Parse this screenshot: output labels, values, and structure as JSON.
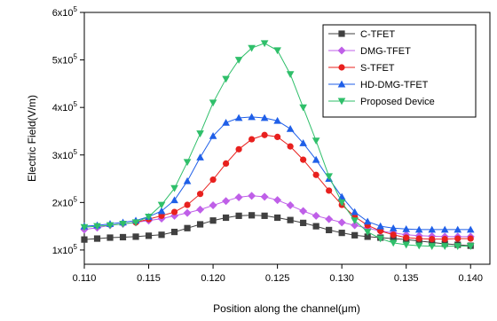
{
  "chart_data": {
    "type": "line",
    "xlabel": "Position along the channel(",
    "xlabel_unit": "μm",
    "xlabel_close": ")",
    "ylabel": "Electric Field(V/m)",
    "xlim": [
      0.11,
      0.1415
    ],
    "ylim": [
      70000,
      600000
    ],
    "x_ticks": [
      0.11,
      0.115,
      0.12,
      0.125,
      0.13,
      0.135,
      0.14
    ],
    "x_tick_labels": [
      "0.110",
      "0.115",
      "0.120",
      "0.125",
      "0.130",
      "0.135",
      "0.140"
    ],
    "y_ticks": [
      100000,
      200000,
      300000,
      400000,
      500000,
      600000
    ],
    "y_tick_labels": [
      {
        "mantissa": "1x10",
        "exp": "5"
      },
      {
        "mantissa": "2x10",
        "exp": "5"
      },
      {
        "mantissa": "3x10",
        "exp": "5"
      },
      {
        "mantissa": "4x10",
        "exp": "5"
      },
      {
        "mantissa": "5x10",
        "exp": "5"
      },
      {
        "mantissa": "6x10",
        "exp": "5"
      }
    ],
    "grid": false,
    "legend_position": "top-right",
    "series": [
      {
        "name": "C-TFET",
        "color": "#404040",
        "marker": "square",
        "x": [
          0.11,
          0.111,
          0.112,
          0.113,
          0.114,
          0.115,
          0.116,
          0.117,
          0.118,
          0.119,
          0.12,
          0.121,
          0.122,
          0.123,
          0.124,
          0.125,
          0.126,
          0.127,
          0.128,
          0.129,
          0.13,
          0.131,
          0.132,
          0.133,
          0.134,
          0.135,
          0.136,
          0.137,
          0.138,
          0.139,
          0.14
        ],
        "y": [
          122000,
          124000,
          126000,
          127000,
          128000,
          130000,
          132000,
          138000,
          146000,
          154000,
          162000,
          168000,
          172000,
          173000,
          172000,
          168000,
          163000,
          157000,
          150000,
          142000,
          136000,
          131000,
          128000,
          126000,
          124000,
          122000,
          119000,
          116000,
          113000,
          111000,
          109000
        ]
      },
      {
        "name": "DMG-TFET",
        "color": "#bf5fe8",
        "marker": "diamond",
        "x": [
          0.11,
          0.111,
          0.112,
          0.113,
          0.114,
          0.115,
          0.116,
          0.117,
          0.118,
          0.119,
          0.12,
          0.121,
          0.122,
          0.123,
          0.124,
          0.125,
          0.126,
          0.127,
          0.128,
          0.129,
          0.13,
          0.131,
          0.132,
          0.133,
          0.134,
          0.135,
          0.136,
          0.137,
          0.138,
          0.139,
          0.14
        ],
        "y": [
          143000,
          147000,
          152000,
          155000,
          158000,
          162000,
          166000,
          172000,
          178000,
          185000,
          194000,
          203000,
          211000,
          214000,
          212000,
          205000,
          194000,
          182000,
          172000,
          165000,
          158000,
          152000,
          146000,
          140000,
          136000,
          132000,
          130000,
          129000,
          128000,
          128000,
          128000
        ]
      },
      {
        "name": "S-TFET",
        "color": "#e8201e",
        "marker": "circle",
        "x": [
          0.114,
          0.115,
          0.116,
          0.117,
          0.118,
          0.119,
          0.12,
          0.121,
          0.122,
          0.123,
          0.124,
          0.125,
          0.126,
          0.127,
          0.128,
          0.129,
          0.13,
          0.131,
          0.132,
          0.133,
          0.134,
          0.135,
          0.136,
          0.137,
          0.138,
          0.139,
          0.14
        ],
        "y": [
          158000,
          165000,
          172000,
          180000,
          195000,
          218000,
          248000,
          282000,
          312000,
          333000,
          342000,
          338000,
          318000,
          290000,
          258000,
          225000,
          195000,
          170000,
          152000,
          140000,
          132000,
          126000,
          124000,
          123000,
          123000,
          124000,
          124000
        ]
      },
      {
        "name": "HD-DMG-TFET",
        "color": "#1f5fe8",
        "marker": "triangle-up",
        "x": [
          0.11,
          0.111,
          0.112,
          0.113,
          0.114,
          0.115,
          0.116,
          0.117,
          0.118,
          0.119,
          0.12,
          0.121,
          0.122,
          0.123,
          0.124,
          0.125,
          0.126,
          0.127,
          0.128,
          0.129,
          0.13,
          0.131,
          0.132,
          0.133,
          0.134,
          0.135,
          0.136,
          0.137,
          0.138,
          0.139,
          0.14
        ],
        "y": [
          150000,
          152000,
          155000,
          158000,
          162000,
          170000,
          182000,
          205000,
          245000,
          295000,
          340000,
          368000,
          378000,
          380000,
          378000,
          372000,
          355000,
          325000,
          290000,
          250000,
          212000,
          180000,
          160000,
          150000,
          146000,
          144000,
          143000,
          143000,
          143000,
          143000,
          143000
        ]
      },
      {
        "name": "Proposed Device",
        "color": "#2fbf6a",
        "marker": "triangle-down",
        "x": [
          0.11,
          0.111,
          0.112,
          0.113,
          0.114,
          0.115,
          0.116,
          0.117,
          0.118,
          0.119,
          0.12,
          0.121,
          0.122,
          0.123,
          0.124,
          0.125,
          0.126,
          0.127,
          0.128,
          0.129,
          0.13,
          0.131,
          0.132,
          0.133,
          0.134,
          0.135,
          0.136,
          0.137,
          0.138,
          0.139,
          0.14
        ],
        "y": [
          148000,
          150000,
          152000,
          155000,
          158000,
          170000,
          195000,
          230000,
          285000,
          345000,
          410000,
          460000,
          500000,
          525000,
          535000,
          520000,
          470000,
          400000,
          330000,
          255000,
          200000,
          162000,
          138000,
          124000,
          115000,
          111000,
          109000,
          108000,
          108000,
          108000,
          108000
        ]
      }
    ]
  }
}
